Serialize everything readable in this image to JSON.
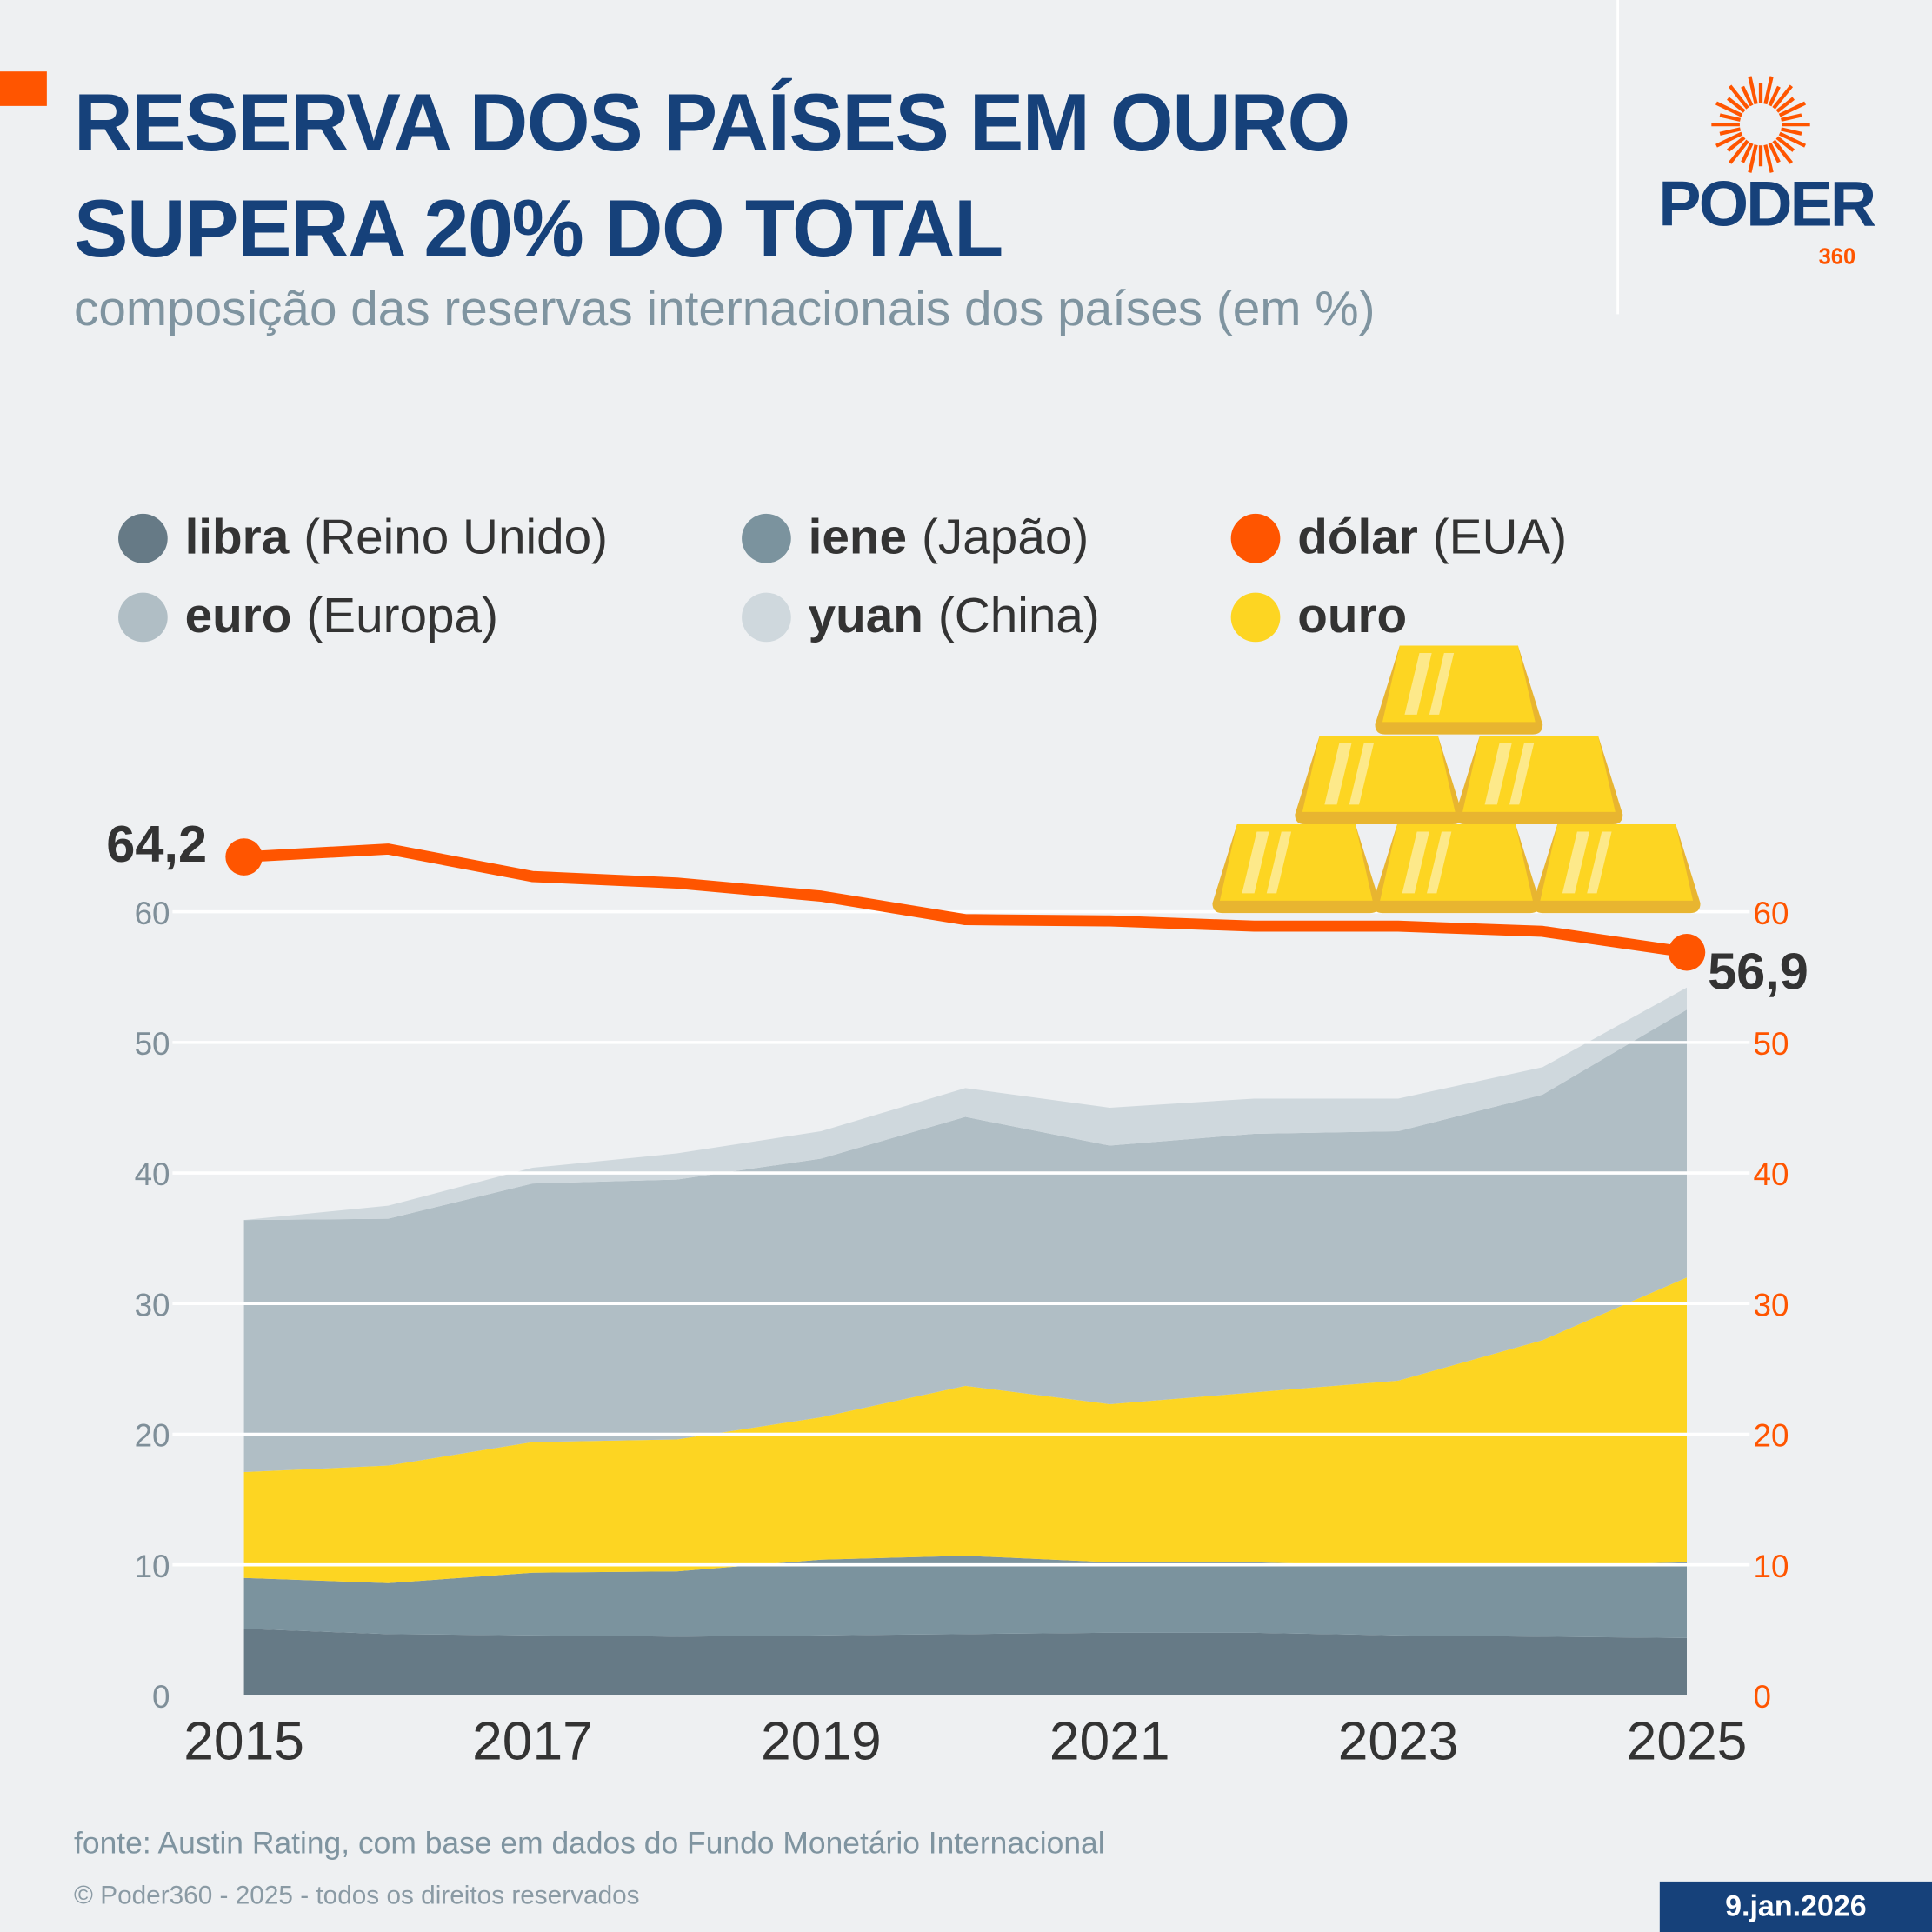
{
  "header": {
    "title_line1": "RESERVA DOS PAÍSES EM OURO",
    "title_line2": "SUPERA 20% DO TOTAL",
    "subtitle": "composição das reservas internacionais dos países (em %)"
  },
  "logo": {
    "word": "PODER",
    "number": "360",
    "brand_color": "#ff5500"
  },
  "legend": [
    {
      "bold": "libra",
      "rest": "(Reino Unido)",
      "color": "#667a86"
    },
    {
      "bold": "iene",
      "rest": "(Japão)",
      "color": "#7b939e"
    },
    {
      "bold": "dólar",
      "rest": "(EUA)",
      "color": "#ff5500"
    },
    {
      "bold": "euro",
      "rest": "(Europa)",
      "color": "#b0bec5"
    },
    {
      "bold": "yuan",
      "rest": "(China)",
      "color": "#cfd8dd"
    },
    {
      "bold": "ouro",
      "rest": "",
      "color": "#fdd522"
    }
  ],
  "chart_data": {
    "type": "area",
    "stacked": true,
    "x": [
      2015,
      2016,
      2017,
      2018,
      2019,
      2020,
      2021,
      2022,
      2023,
      2024,
      2025
    ],
    "x_tick_labels": [
      "2015",
      "2017",
      "2019",
      "2021",
      "2023",
      "2025"
    ],
    "ylim": [
      0,
      60
    ],
    "y_ticks": [
      "0",
      "10",
      "20",
      "30",
      "40",
      "50",
      "60"
    ],
    "grid": true,
    "series": [
      {
        "name": "libra (Reino Unido)",
        "color": "#667a86",
        "values": [
          5.1,
          4.7,
          4.6,
          4.5,
          4.6,
          4.7,
          4.8,
          4.8,
          4.6,
          4.5,
          4.4
        ]
      },
      {
        "name": "iene (Japão)",
        "color": "#7b939e",
        "values": [
          3.9,
          3.9,
          4.8,
          5.0,
          5.8,
          6.0,
          5.4,
          5.4,
          5.3,
          5.4,
          5.8
        ]
      },
      {
        "name": "ouro",
        "color": "#fdd522",
        "values": [
          8.1,
          9.0,
          10.0,
          10.1,
          10.9,
          13.0,
          12.1,
          13.0,
          14.2,
          17.3,
          21.8
        ]
      },
      {
        "name": "euro (Europa)",
        "color": "#b0bec5",
        "values": [
          19.3,
          18.9,
          19.8,
          19.9,
          19.8,
          20.6,
          19.8,
          19.8,
          19.1,
          18.8,
          20.5
        ]
      },
      {
        "name": "yuan (China)",
        "color": "#cfd8dd",
        "values": [
          0.0,
          1.0,
          1.2,
          2.0,
          2.1,
          2.2,
          2.9,
          2.7,
          2.5,
          2.1,
          1.7
        ]
      }
    ],
    "line_series": {
      "name": "dólar (EUA)",
      "color": "#ff5500",
      "values": [
        64.2,
        64.8,
        62.7,
        62.2,
        61.2,
        59.4,
        59.3,
        58.9,
        58.9,
        58.5,
        56.9
      ]
    },
    "data_labels": {
      "first": "64,2",
      "last": "56,9"
    }
  },
  "footer": {
    "source": "fonte: Austin Rating, com base em dados do Fundo Monetário Internacional",
    "copyright": "© Poder360 - 2025 - todos os direitos reservados",
    "date": "9.jan.2026"
  }
}
